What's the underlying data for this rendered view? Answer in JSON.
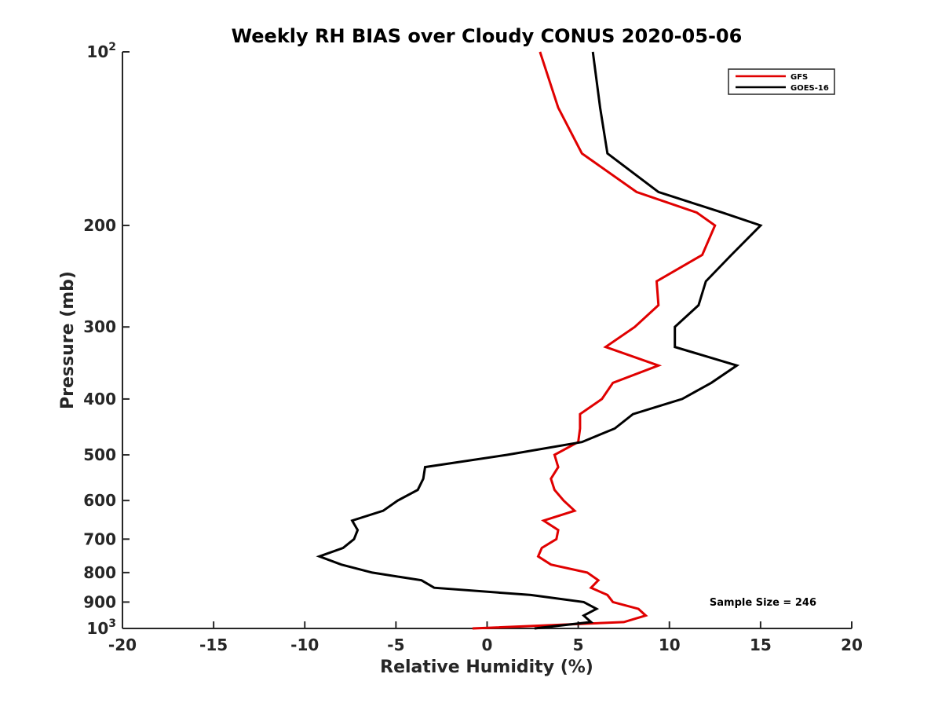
{
  "chart_data": {
    "type": "line",
    "title": "Weekly RH BIAS over Cloudy CONUS 2020-05-06",
    "xlabel": "Relative Humidity (%)",
    "ylabel": "Pressure (mb)",
    "xlim": [
      -20,
      20
    ],
    "ylim": [
      100,
      1000
    ],
    "y_scale": "log",
    "y_reversed": true,
    "grid": false,
    "legend_position": "top-right",
    "x_ticks": [
      -20,
      -15,
      -10,
      -5,
      0,
      5,
      10,
      15,
      20
    ],
    "x_tick_labels": [
      "-20",
      "-15",
      "-10",
      "-5",
      "0",
      "5",
      "10",
      "15",
      "20"
    ],
    "y_ticks": [
      100,
      200,
      300,
      400,
      500,
      600,
      700,
      800,
      900,
      1000
    ],
    "y_tick_labels": [
      {
        "base": "10",
        "exp": "2"
      },
      {
        "base": "200",
        "exp": ""
      },
      {
        "base": "300",
        "exp": ""
      },
      {
        "base": "400",
        "exp": ""
      },
      {
        "base": "500",
        "exp": ""
      },
      {
        "base": "600",
        "exp": ""
      },
      {
        "base": "700",
        "exp": ""
      },
      {
        "base": "800",
        "exp": ""
      },
      {
        "base": "900",
        "exp": ""
      },
      {
        "base": "10",
        "exp": "3"
      }
    ],
    "annotation": "Sample Size = 246",
    "series": [
      {
        "name": "GFS",
        "color": "#e00000",
        "pressure": [
          100,
          125,
          150,
          175,
          190,
          200,
          225,
          250,
          275,
          300,
          325,
          350,
          375,
          400,
          425,
          450,
          475,
          500,
          525,
          550,
          575,
          600,
          625,
          650,
          675,
          700,
          725,
          750,
          775,
          800,
          825,
          850,
          875,
          900,
          925,
          950,
          975,
          1000
        ],
        "rh": [
          2.9,
          3.9,
          5.2,
          8.2,
          11.5,
          12.5,
          11.8,
          9.3,
          9.4,
          8.1,
          6.5,
          9.4,
          6.9,
          6.3,
          5.1,
          5.1,
          5.0,
          3.7,
          3.9,
          3.5,
          3.7,
          4.2,
          4.8,
          3.1,
          3.9,
          3.8,
          3.0,
          2.8,
          3.5,
          5.5,
          6.1,
          5.7,
          6.6,
          6.9,
          8.3,
          8.7,
          7.5,
          -0.8
        ]
      },
      {
        "name": "GOES-16",
        "color": "#000000",
        "pressure": [
          100,
          125,
          150,
          175,
          190,
          200,
          225,
          250,
          275,
          300,
          325,
          350,
          375,
          400,
          425,
          450,
          475,
          500,
          525,
          550,
          575,
          600,
          625,
          650,
          675,
          700,
          725,
          750,
          775,
          800,
          825,
          850,
          875,
          900,
          925,
          950,
          975,
          1000
        ],
        "rh": [
          5.8,
          6.2,
          6.6,
          9.4,
          12.9,
          15.0,
          13.4,
          12.0,
          11.6,
          10.3,
          10.3,
          13.7,
          12.3,
          10.7,
          8.0,
          7.0,
          5.2,
          1.1,
          -3.4,
          -3.5,
          -3.8,
          -4.9,
          -5.7,
          -7.4,
          -7.1,
          -7.3,
          -7.9,
          -9.2,
          -8.0,
          -6.3,
          -3.6,
          -2.9,
          2.4,
          5.3,
          6.0,
          5.3,
          5.7,
          2.6
        ]
      }
    ]
  }
}
